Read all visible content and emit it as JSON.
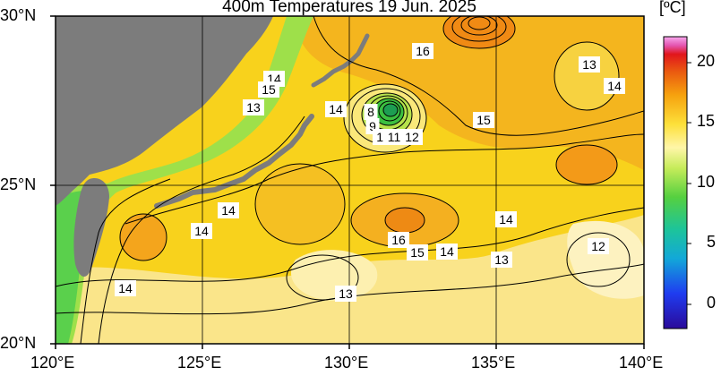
{
  "title": "400m Temperatures  19 Jun. 2025",
  "colorbar": {
    "unit": "[ºC]",
    "ticks": [
      "20",
      "15",
      "10",
      "5",
      "0"
    ]
  },
  "axes": {
    "y_ticks": [
      "30°N",
      "25°N",
      "20°N"
    ],
    "x_ticks": [
      "120°E",
      "125°E",
      "130°E",
      "135°E",
      "140°E"
    ]
  },
  "contour_labels": [
    "14",
    "15",
    "13",
    "14",
    "16",
    "8",
    "9",
    "10",
    "11",
    "12",
    "15",
    "13",
    "14",
    "14",
    "14",
    "16",
    "15",
    "14",
    "14",
    "13",
    "12",
    "14",
    "13"
  ],
  "colors": {
    "land": "#7c7c7c",
    "warm": "#f2a40f",
    "mid": "#f8d21c",
    "cool": "#fae77a"
  }
}
